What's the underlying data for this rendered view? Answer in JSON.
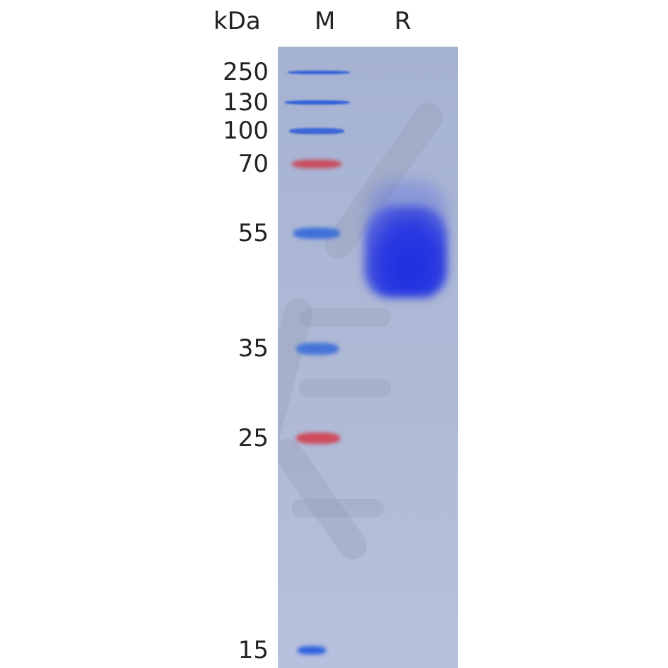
{
  "header": {
    "unit_label": "kDa",
    "lanes": [
      "M",
      "R"
    ]
  },
  "marker": {
    "bands": [
      {
        "kda": "250",
        "color": "#2f5fd8"
      },
      {
        "kda": "130",
        "color": "#2f5fd8"
      },
      {
        "kda": "100",
        "color": "#3d66d6"
      },
      {
        "kda": "70",
        "color": "#c94a5a"
      },
      {
        "kda": "55",
        "color": "#3f70da"
      },
      {
        "kda": "35",
        "color": "#4574d8"
      },
      {
        "kda": "25",
        "color": "#cf4a5c"
      },
      {
        "kda": "15",
        "color": "#2f62e0"
      }
    ]
  },
  "sample": {
    "lane": "R",
    "band_color": "#1f2de0"
  }
}
